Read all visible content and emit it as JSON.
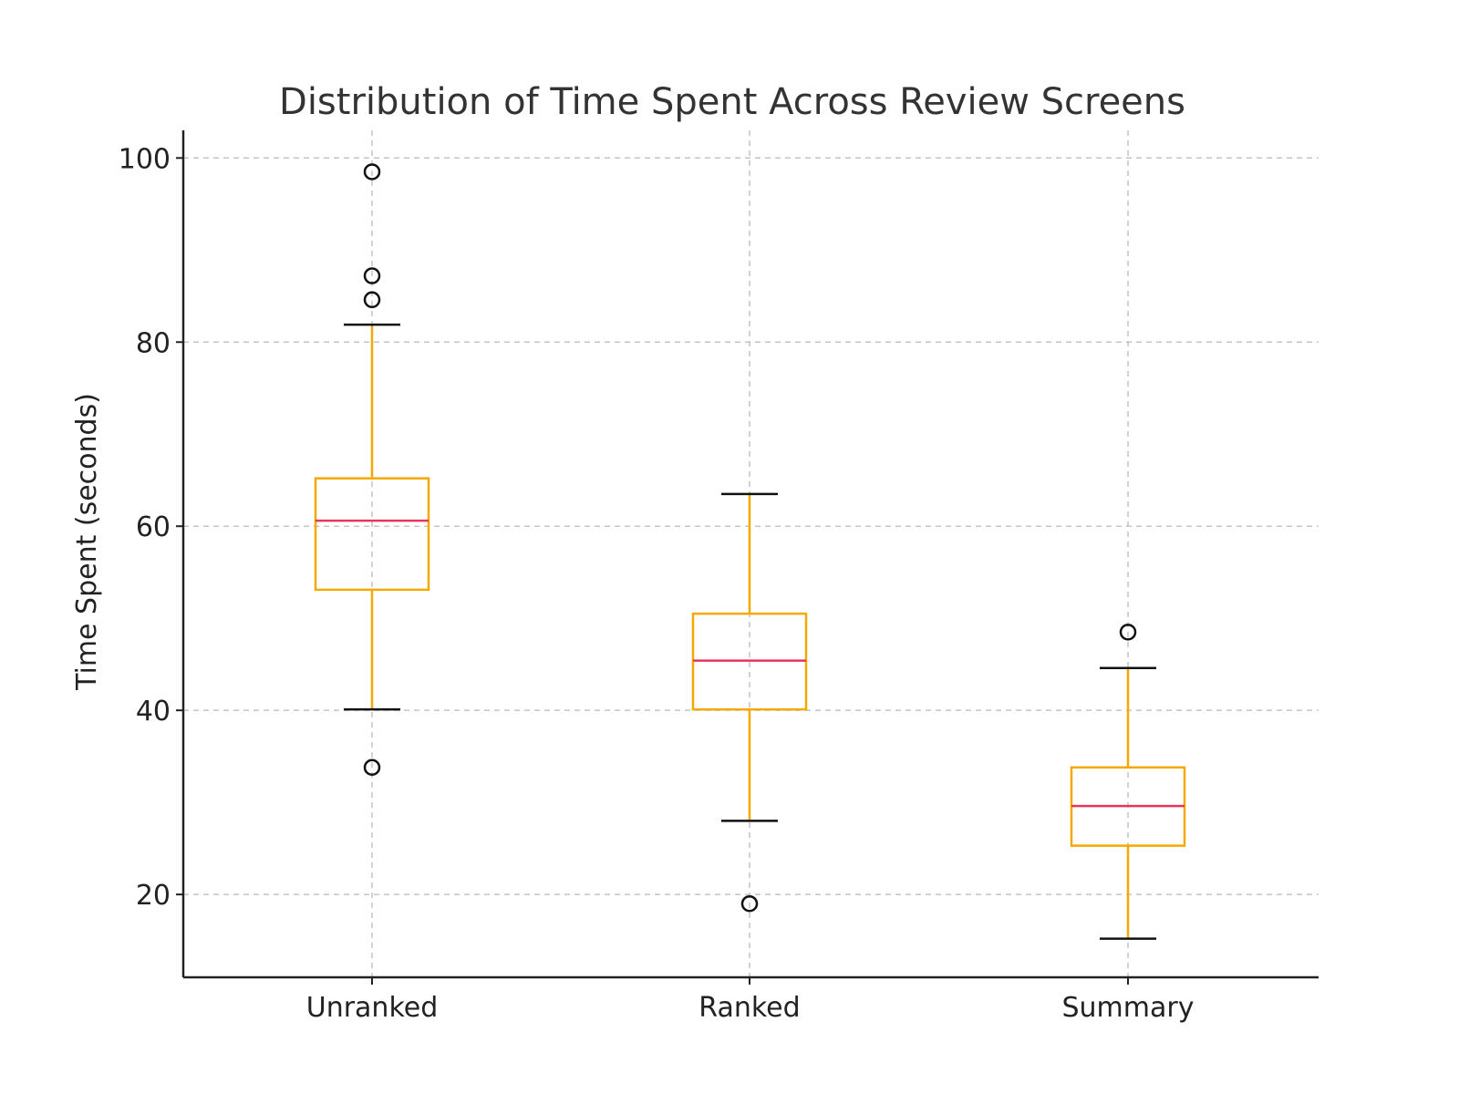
{
  "chart_data": {
    "type": "boxplot",
    "title": "Distribution of Time Spent Across Review Screens",
    "xlabel": "",
    "ylabel": "Time Spent (seconds)",
    "ylim": [
      11,
      103
    ],
    "yticks": [
      20,
      40,
      60,
      80,
      100
    ],
    "grid": true,
    "categories": [
      "Unranked",
      "Ranked",
      "Summary"
    ],
    "boxes": [
      {
        "name": "Unranked",
        "whisker_low": 40.1,
        "q1": 53.1,
        "median": 60.6,
        "q3": 65.2,
        "whisker_high": 81.9,
        "outliers": [
          98.5,
          87.2,
          84.6,
          33.8
        ]
      },
      {
        "name": "Ranked",
        "whisker_low": 28.0,
        "q1": 40.1,
        "median": 45.4,
        "q3": 50.5,
        "whisker_high": 63.5,
        "outliers": [
          19.0
        ]
      },
      {
        "name": "Summary",
        "whisker_low": 15.2,
        "q1": 25.3,
        "median": 29.6,
        "q3": 33.8,
        "whisker_high": 44.6,
        "outliers": [
          48.5
        ]
      }
    ],
    "colors": {
      "box": "#f5a800",
      "median": "#e8355a",
      "whisker_cap": "#111111",
      "outlier": "#111111"
    }
  }
}
